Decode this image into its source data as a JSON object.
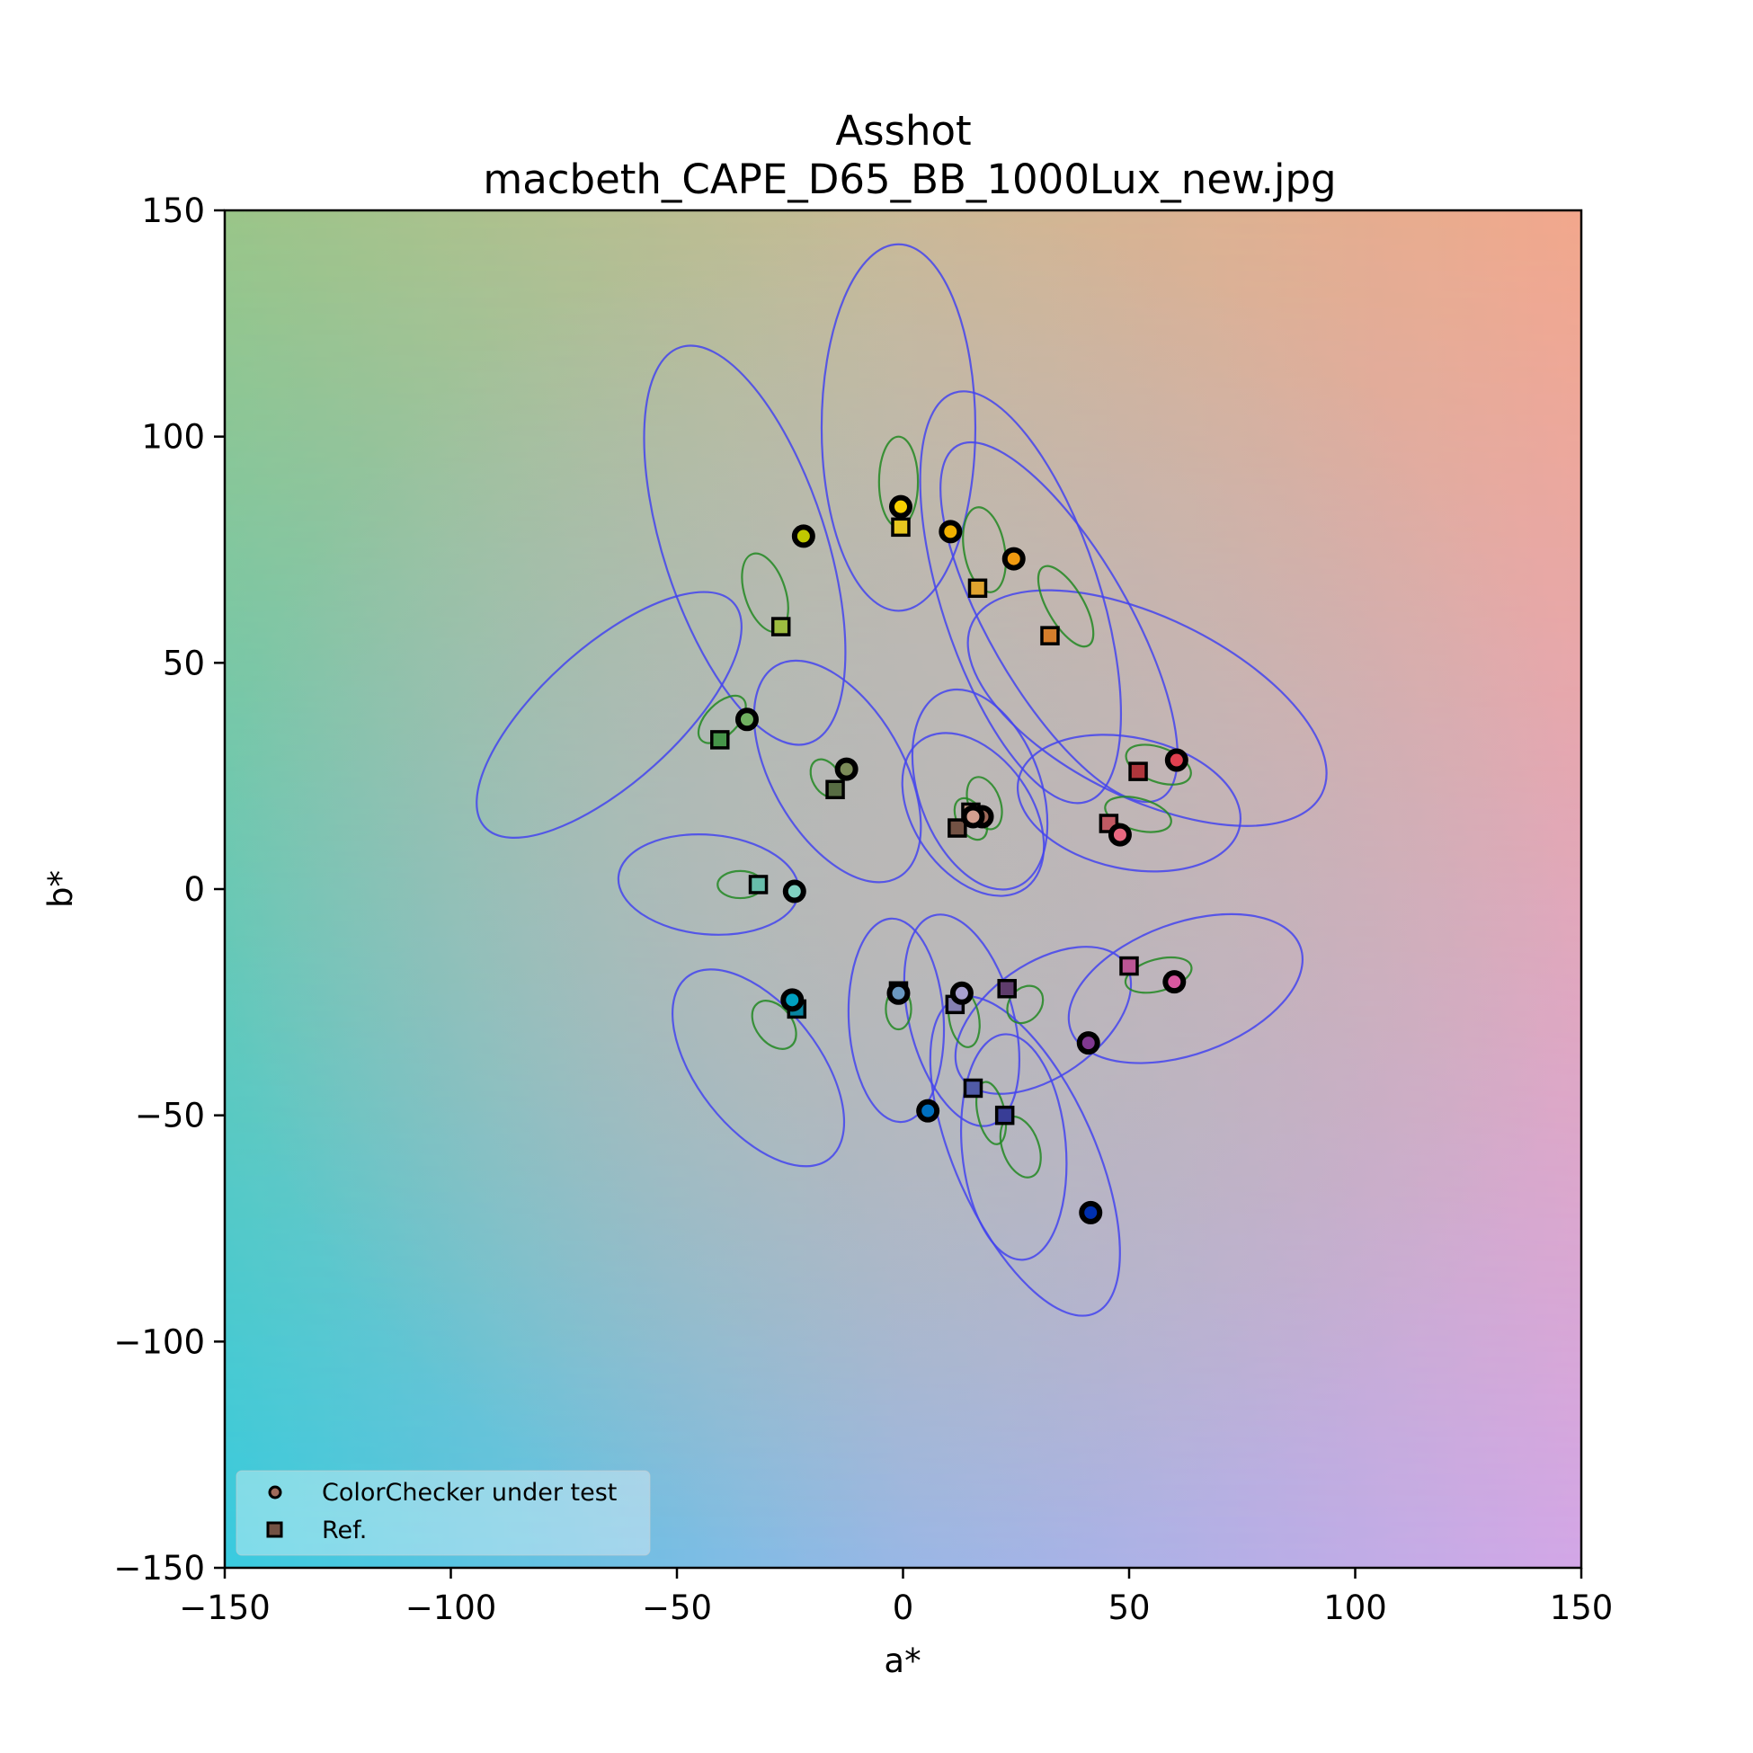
{
  "chart_data": {
    "type": "scatter",
    "title": "Asshot",
    "subtitle": "macbeth_CAPE_D65_BB_1000Lux_new.jpg",
    "xlabel": "a*",
    "ylabel": "b*",
    "xlim": [
      -150,
      150
    ],
    "ylim": [
      -150,
      150
    ],
    "xticks": [
      "−150",
      "−100",
      "−50",
      "0",
      "50",
      "100",
      "150"
    ],
    "yticks": [
      "150",
      "100",
      "50",
      "0",
      "−50",
      "−100",
      "−150"
    ],
    "xtick_values": [
      -150,
      -100,
      -50,
      0,
      50,
      100,
      150
    ],
    "ytick_values": [
      150,
      100,
      50,
      0,
      -50,
      -100,
      -150
    ],
    "grid": false,
    "background": "CIELAB a*b* colour gradient",
    "legend": {
      "position": "lower left",
      "entries": [
        {
          "label": "ColorChecker under test",
          "marker": "circle",
          "color": "#a06a5a"
        },
        {
          "label": "Ref.",
          "marker": "square",
          "color": "#735244"
        }
      ]
    },
    "series": [
      {
        "name": "ColorChecker under test",
        "marker": "circle",
        "points": [
          {
            "a": 17.5,
            "b": 16.0,
            "color": "#a06a5a"
          },
          {
            "a": 15.5,
            "b": 16.0,
            "color": "#d4a090"
          },
          {
            "a": -1.0,
            "b": -23.0,
            "color": "#6a98c0"
          },
          {
            "a": -12.5,
            "b": 26.5,
            "color": "#7a8a58"
          },
          {
            "a": 13.0,
            "b": -23.0,
            "color": "#a8a0d0"
          },
          {
            "a": -24.0,
            "b": -0.5,
            "color": "#80d0c0"
          },
          {
            "a": 24.5,
            "b": 73.0,
            "color": "#f09a10"
          },
          {
            "a": 5.5,
            "b": -49.0,
            "color": "#0070c0"
          },
          {
            "a": 48.0,
            "b": 12.0,
            "color": "#e86880"
          },
          {
            "a": 41.0,
            "b": -34.0,
            "color": "#803890"
          },
          {
            "a": -22.0,
            "b": 78.0,
            "color": "#c0c800"
          },
          {
            "a": 10.5,
            "b": 79.0,
            "color": "#f0b000"
          },
          {
            "a": 41.5,
            "b": -71.5,
            "color": "#0030b0"
          },
          {
            "a": -34.5,
            "b": 37.5,
            "color": "#70b060"
          },
          {
            "a": 60.5,
            "b": 28.5,
            "color": "#e04050"
          },
          {
            "a": -0.5,
            "b": 84.5,
            "color": "#f8d000"
          },
          {
            "a": 60.0,
            "b": -20.5,
            "color": "#d858a0"
          },
          {
            "a": -24.5,
            "b": -24.5,
            "color": "#00a0c0"
          }
        ]
      },
      {
        "name": "Ref.",
        "marker": "square",
        "points": [
          {
            "a": 12.0,
            "b": 13.5,
            "color": "#735244"
          },
          {
            "a": 15.0,
            "b": 17.0,
            "color": "#c29682"
          },
          {
            "a": -1.0,
            "b": -22.5,
            "color": "#627a9d"
          },
          {
            "a": -15.0,
            "b": 22.0,
            "color": "#576c43"
          },
          {
            "a": 11.5,
            "b": -25.5,
            "color": "#8580b1"
          },
          {
            "a": -32.0,
            "b": 1.0,
            "color": "#67bdaa"
          },
          {
            "a": 32.5,
            "b": 56.0,
            "color": "#d67e2c"
          },
          {
            "a": 15.5,
            "b": -44.0,
            "color": "#505ba6"
          },
          {
            "a": 45.5,
            "b": 14.5,
            "color": "#c15a63"
          },
          {
            "a": 23.0,
            "b": -22.0,
            "color": "#5e3c6c"
          },
          {
            "a": -27.0,
            "b": 58.0,
            "color": "#9dbc40"
          },
          {
            "a": 16.5,
            "b": 66.5,
            "color": "#e0a32e"
          },
          {
            "a": 22.5,
            "b": -50.0,
            "color": "#383d96"
          },
          {
            "a": -40.5,
            "b": 33.0,
            "color": "#469449"
          },
          {
            "a": 52.0,
            "b": 26.0,
            "color": "#af363c"
          },
          {
            "a": -0.5,
            "b": 80.0,
            "color": "#e7c71f"
          },
          {
            "a": 50.0,
            "b": -17.0,
            "color": "#bb5695"
          },
          {
            "a": -23.5,
            "b": -26.5,
            "color": "#0885a1"
          }
        ]
      },
      {
        "name": "Blue tolerance ellipses",
        "color": "#4444ee",
        "ellipses": [
          {
            "cx": 17.0,
            "cy": 22.0,
            "rx": 13.5,
            "ry": 23.0,
            "rot": 20
          },
          {
            "cx": 15.5,
            "cy": 16.5,
            "rx": 13.0,
            "ry": 20.0,
            "rot": 35
          },
          {
            "cx": -1.5,
            "cy": -29.0,
            "rx": 10.5,
            "ry": 22.5,
            "rot": 3
          },
          {
            "cx": -14.5,
            "cy": 26.0,
            "rx": 14.5,
            "ry": 27.0,
            "rot": 30
          },
          {
            "cx": 13.0,
            "cy": -29.0,
            "rx": 11.5,
            "ry": 24.0,
            "rot": 15
          },
          {
            "cx": -43.0,
            "cy": 1.0,
            "rx": 20.0,
            "ry": 11.0,
            "rot": -5
          },
          {
            "cx": 34.5,
            "cy": 59.0,
            "rx": 15.5,
            "ry": 45.0,
            "rot": 30
          },
          {
            "cx": 24.5,
            "cy": -57.0,
            "rx": 11.5,
            "ry": 25.0,
            "rot": 5
          },
          {
            "cx": 50.0,
            "cy": 19.0,
            "rx": 25.0,
            "ry": 14.5,
            "rot": -12
          },
          {
            "cx": 31.0,
            "cy": -29.0,
            "rx": 12.5,
            "ry": 22.0,
            "rot": -55
          },
          {
            "cx": -35.0,
            "cy": 76.0,
            "rx": 18.0,
            "ry": 46.0,
            "rot": 18
          },
          {
            "cx": 26.0,
            "cy": 64.5,
            "rx": 17.5,
            "ry": 47.5,
            "rot": 18
          },
          {
            "cx": 27.0,
            "cy": -59.0,
            "rx": 15.5,
            "ry": 38.0,
            "rot": 24
          },
          {
            "cx": -65.0,
            "cy": 38.5,
            "rx": 15.0,
            "ry": 37.0,
            "rot": -48
          },
          {
            "cx": 54.0,
            "cy": 40.0,
            "rx": 20.0,
            "ry": 43.0,
            "rot": 64
          },
          {
            "cx": -1.0,
            "cy": 102.0,
            "rx": 17.0,
            "ry": 40.5,
            "rot": 0
          },
          {
            "cx": 62.5,
            "cy": -22.0,
            "rx": 27.0,
            "ry": 14.5,
            "rot": 20
          },
          {
            "cx": -32.0,
            "cy": -39.5,
            "rx": 13.5,
            "ry": 25.5,
            "rot": 38
          }
        ]
      },
      {
        "name": "Green tolerance ellipses",
        "color": "#228822",
        "ellipses": [
          {
            "cx": 18.0,
            "cy": 19.0,
            "rx": 3.5,
            "ry": 6.0,
            "rot": 20
          },
          {
            "cx": 15.0,
            "cy": 15.5,
            "rx": 3.0,
            "ry": 5.0,
            "rot": 30
          },
          {
            "cx": -1.0,
            "cy": -26.5,
            "rx": 2.8,
            "ry": 4.5,
            "rot": 0
          },
          {
            "cx": -17.0,
            "cy": 24.5,
            "rx": 3.0,
            "ry": 4.5,
            "rot": 30
          },
          {
            "cx": 13.5,
            "cy": -28.5,
            "rx": 3.3,
            "ry": 6.5,
            "rot": 10
          },
          {
            "cx": -36.0,
            "cy": 1.0,
            "rx": 5.0,
            "ry": 3.0,
            "rot": 0
          },
          {
            "cx": 36.0,
            "cy": 62.5,
            "rx": 4.0,
            "ry": 10.0,
            "rot": 30
          },
          {
            "cx": 19.5,
            "cy": -49.5,
            "rx": 3.0,
            "ry": 7.0,
            "rot": 12
          },
          {
            "cx": 52.0,
            "cy": 16.5,
            "rx": 7.5,
            "ry": 3.5,
            "rot": -15
          },
          {
            "cx": 27.0,
            "cy": -25.5,
            "rx": 3.5,
            "ry": 4.5,
            "rot": -40
          },
          {
            "cx": -30.5,
            "cy": 65.5,
            "rx": 4.5,
            "ry": 9.0,
            "rot": 18
          },
          {
            "cx": 18.0,
            "cy": 75.0,
            "rx": 4.5,
            "ry": 9.5,
            "rot": 10
          },
          {
            "cx": 26.0,
            "cy": -57.0,
            "rx": 4.0,
            "ry": 7.0,
            "rot": 20
          },
          {
            "cx": -40.0,
            "cy": 37.5,
            "rx": 3.5,
            "ry": 6.5,
            "rot": -45
          },
          {
            "cx": 56.5,
            "cy": 27.5,
            "rx": 3.8,
            "ry": 7.5,
            "rot": 70
          },
          {
            "cx": -1.0,
            "cy": 90.0,
            "rx": 4.3,
            "ry": 10.0,
            "rot": 0
          },
          {
            "cx": 56.5,
            "cy": -19.0,
            "rx": 7.5,
            "ry": 3.5,
            "rot": 15
          },
          {
            "cx": -28.5,
            "cy": -30.0,
            "rx": 4.0,
            "ry": 6.0,
            "rot": 38
          }
        ]
      }
    ]
  }
}
